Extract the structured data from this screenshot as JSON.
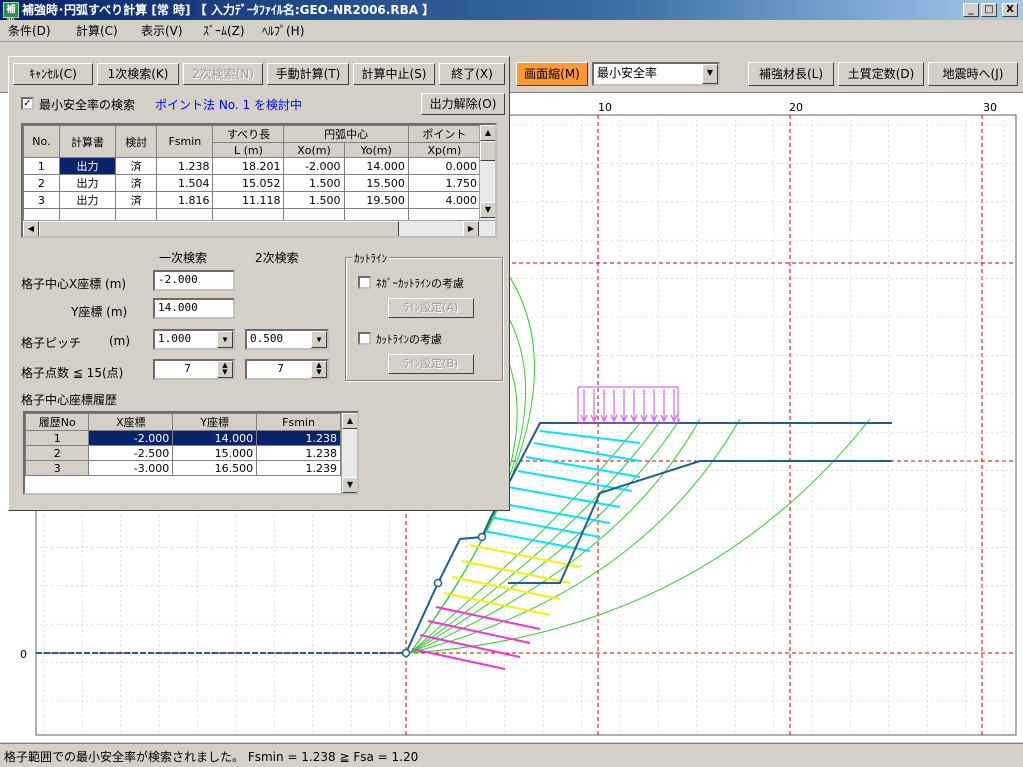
{
  "titlebar": {
    "app_icon_text": "補強",
    "title": "補強時･円弧すべり計算 [常 時]  【 入力ﾃﾞｰﾀﾌｧｲﾙ名:GEO-NR2006.RBA 】",
    "minimize": "_",
    "maximize": "□",
    "close": "X"
  },
  "menu": [
    "条件(D)",
    "計算(C)",
    "表示(V)",
    "ｽﾞｰﾑ(Z)",
    "ﾍﾙﾌﾟ(H)"
  ],
  "panel_buttons": {
    "cancel": "ｷｬﾝｾﾙ(C)",
    "search1": "1次検索(K)",
    "search2": "2次検索(N)",
    "manual": "手動計算(T)",
    "stop": "計算中止(S)",
    "end": "終了(X)",
    "output_clear": "出力解除(O)"
  },
  "min_safety": {
    "checkbox_label": "最小安全率の検索",
    "checked": true,
    "status": "ポイント法 No. 1 を検討中"
  },
  "result_table": {
    "header1": [
      "No.",
      "計算書",
      "検討",
      "Fsmin",
      "すべり長",
      "円弧中心",
      "ポイント"
    ],
    "header2": [
      "L (m)",
      "Xo(m)",
      "Yo(m)",
      "Xp(m)"
    ],
    "rows": [
      [
        "1",
        "出力",
        "済",
        "1.238",
        "18.201",
        "-2.000",
        "14.000",
        "0.000"
      ],
      [
        "2",
        "出力",
        "済",
        "1.504",
        "15.052",
        "1.500",
        "15.500",
        "1.750"
      ],
      [
        "3",
        "出力",
        "済",
        "1.816",
        "11.118",
        "1.500",
        "19.500",
        "4.000"
      ]
    ]
  },
  "search_form": {
    "col1_label": "一次検索",
    "col2_label": "2次検索",
    "x_label": "格子中心X座標 (m)",
    "x_value": "-2.000",
    "y_label": "Y座標 (m)",
    "y_value": "14.000",
    "pitch_label": "格子ピッチ",
    "pitch_unit": "(m)",
    "pitch1": "1.000",
    "pitch2": "0.500",
    "points_label": "格子点数 ≦ 15(点)",
    "points1": "7",
    "points2": "7"
  },
  "cutline": {
    "group_title": "ｶｯﾄﾗｲﾝ",
    "neg_label": "ﾈｶﾞｰｶｯﾄﾗｲﾝの考慮",
    "neg_button": "ﾗｲﾝ設定(A)",
    "cut_label": "ｶｯﾄﾗｲﾝの考慮",
    "cut_button": "ﾗｲﾝ設定(B)"
  },
  "history": {
    "title": "格子中心座標履歴",
    "headers": [
      "履歴No",
      "X座標",
      "Y座標",
      "Fsmin"
    ],
    "rows": [
      [
        "1",
        "-2.000",
        "14.000",
        "1.238"
      ],
      [
        "2",
        "-2.500",
        "15.000",
        "1.238"
      ],
      [
        "3",
        "-3.000",
        "16.500",
        "1.239"
      ]
    ]
  },
  "toolbar": {
    "shrink_button": "画面縮(M)",
    "mode_select": "最小安全率",
    "reinforce_button": "補強材長(L)",
    "soil_button": "土質定数(D)",
    "seismic_button": "地震時へ(J)"
  },
  "plot": {
    "x_ticks": [
      "10",
      "20",
      "30"
    ],
    "y_ticks": [
      "0"
    ],
    "colors": {
      "grid": "#d00000",
      "ground": "#1f5f8f",
      "slip": "#33cc33",
      "nail_cyan": "#00e5ff",
      "nail_yellow": "#ffee00",
      "nail_magenta": "#ff33cc",
      "load": "#cc44ff"
    }
  },
  "status": "格子範囲での最小安全率が検索されました。 Fsmin = 1.238 ≧ Fsa = 1.20"
}
